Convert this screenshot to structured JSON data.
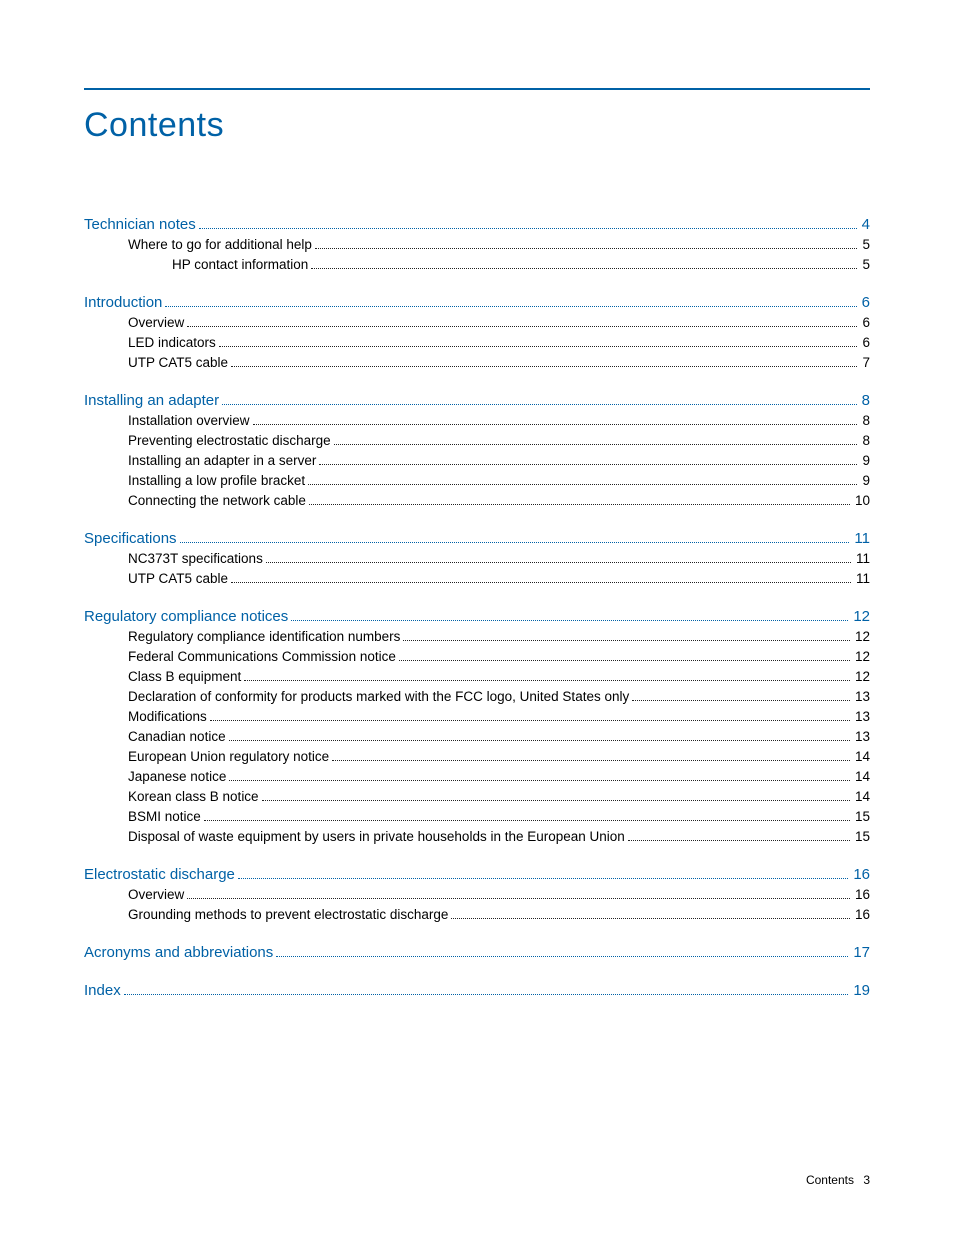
{
  "colors": {
    "accent": "#0061a6",
    "text": "#000000",
    "background": "#ffffff"
  },
  "title": "Contents",
  "footer": {
    "label": "Contents",
    "page": "3"
  },
  "toc": [
    {
      "head": {
        "label": "Technician notes",
        "page": "4"
      },
      "children": [
        {
          "level": 1,
          "label": "Where to go for additional help",
          "page": "5"
        },
        {
          "level": 2,
          "label": "HP contact information",
          "page": "5"
        }
      ]
    },
    {
      "head": {
        "label": "Introduction",
        "page": "6"
      },
      "children": [
        {
          "level": 1,
          "label": "Overview",
          "page": "6"
        },
        {
          "level": 1,
          "label": "LED indicators",
          "page": "6"
        },
        {
          "level": 1,
          "label": "UTP CAT5 cable",
          "page": "7"
        }
      ]
    },
    {
      "head": {
        "label": "Installing an adapter",
        "page": "8"
      },
      "children": [
        {
          "level": 1,
          "label": "Installation overview",
          "page": "8"
        },
        {
          "level": 1,
          "label": "Preventing electrostatic discharge",
          "page": "8"
        },
        {
          "level": 1,
          "label": "Installing an adapter in a server",
          "page": "9"
        },
        {
          "level": 1,
          "label": "Installing a low profile bracket",
          "page": "9"
        },
        {
          "level": 1,
          "label": "Connecting the network cable",
          "page": "10"
        }
      ]
    },
    {
      "head": {
        "label": "Specifications",
        "page": "11"
      },
      "children": [
        {
          "level": 1,
          "label": "NC373T specifications",
          "page": "11"
        },
        {
          "level": 1,
          "label": "UTP CAT5 cable",
          "page": "11"
        }
      ]
    },
    {
      "head": {
        "label": "Regulatory compliance notices",
        "page": "12"
      },
      "children": [
        {
          "level": 1,
          "label": "Regulatory compliance identification numbers",
          "page": "12"
        },
        {
          "level": 1,
          "label": "Federal Communications Commission notice",
          "page": "12"
        },
        {
          "level": 1,
          "label": "Class B equipment",
          "page": "12"
        },
        {
          "level": 1,
          "label": "Declaration of conformity for products marked with the FCC logo, United States only",
          "page": "13"
        },
        {
          "level": 1,
          "label": "Modifications",
          "page": "13"
        },
        {
          "level": 1,
          "label": "Canadian notice",
          "page": "13"
        },
        {
          "level": 1,
          "label": "European Union regulatory notice",
          "page": "14"
        },
        {
          "level": 1,
          "label": "Japanese notice",
          "page": "14"
        },
        {
          "level": 1,
          "label": "Korean class B notice",
          "page": "14"
        },
        {
          "level": 1,
          "label": "BSMI notice",
          "page": "15"
        },
        {
          "level": 1,
          "label": "Disposal of waste equipment by users in private households in the European Union",
          "page": "15"
        }
      ]
    },
    {
      "head": {
        "label": "Electrostatic discharge",
        "page": "16"
      },
      "children": [
        {
          "level": 1,
          "label": "Overview",
          "page": "16"
        },
        {
          "level": 1,
          "label": "Grounding methods to prevent electrostatic discharge",
          "page": "16"
        }
      ]
    },
    {
      "head": {
        "label": "Acronyms and abbreviations",
        "page": "17"
      },
      "children": []
    },
    {
      "head": {
        "label": "Index",
        "page": "19"
      },
      "children": []
    }
  ]
}
